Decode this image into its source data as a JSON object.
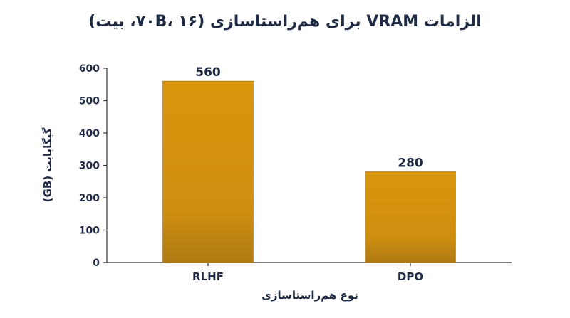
{
  "chart_data": {
    "type": "bar",
    "title": "الزامات VRAM برای هم‌راستاسازی (۷۰B، ۱۶، بیت)",
    "xlabel": "نوع هم‌راستاسازی",
    "ylabel": "گیگابایت (GB)",
    "categories": [
      "RLHF",
      "DPO"
    ],
    "values": [
      560,
      280
    ],
    "ylim": [
      0,
      600
    ],
    "yticks": [
      0,
      100,
      200,
      300,
      400,
      500,
      600
    ],
    "grid": false,
    "legend": "none",
    "colors": {
      "bar_top": "#d9960d",
      "bar_bottom": "#b07a12",
      "text": "#1f2a44",
      "axis": "#333333"
    }
  }
}
